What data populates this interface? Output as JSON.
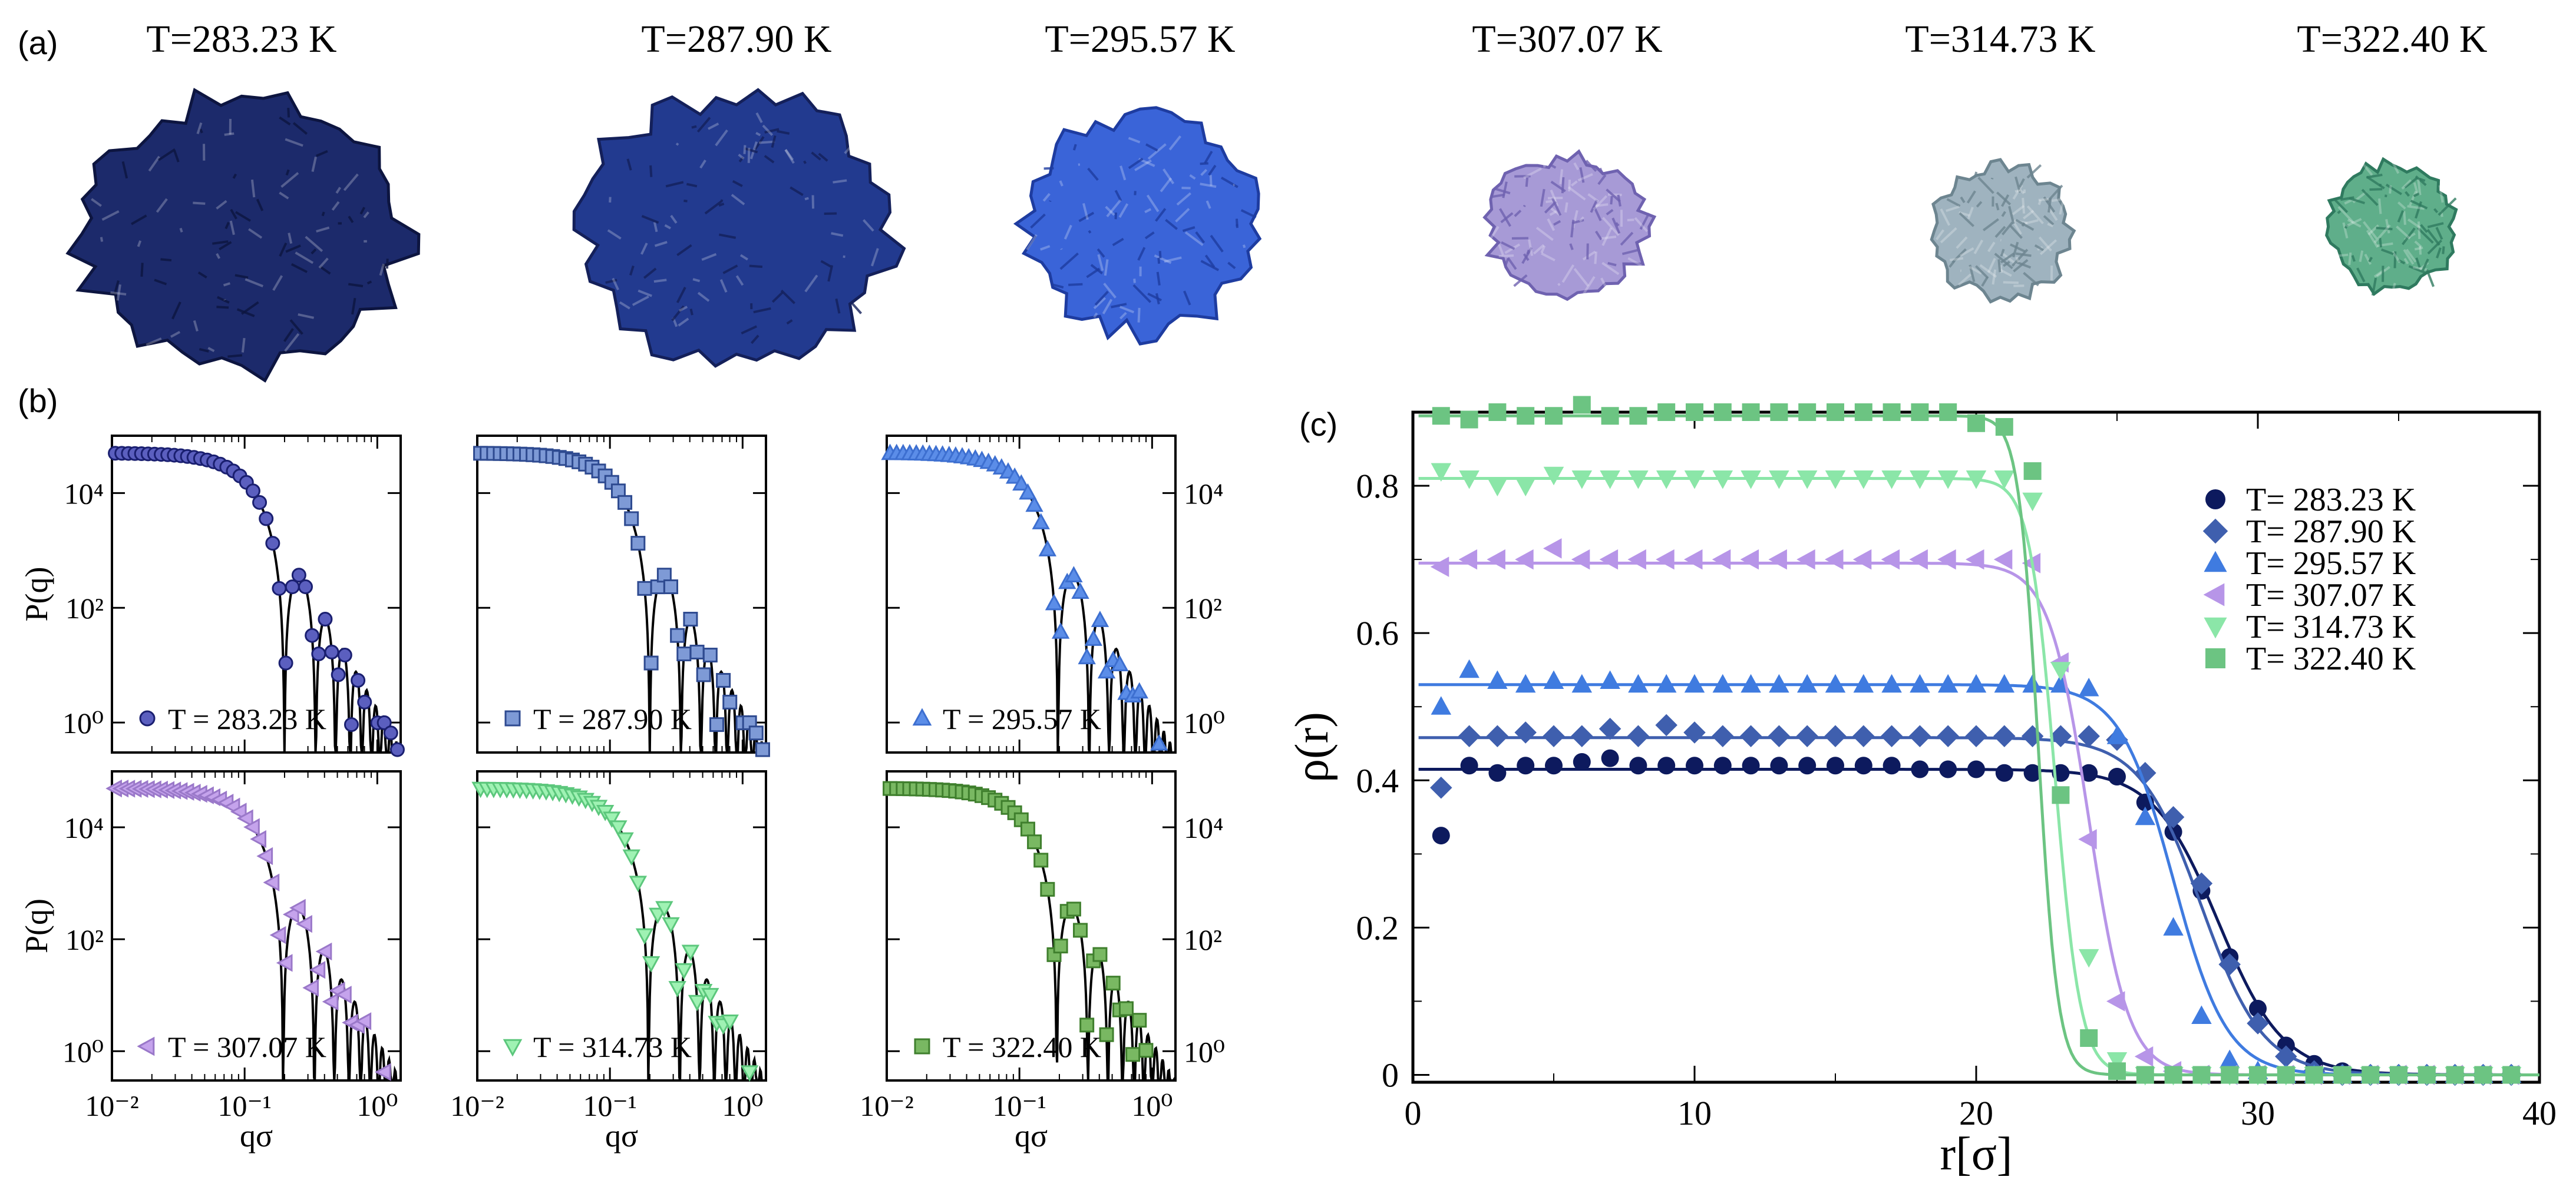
{
  "panel_labels": {
    "a": "(a)",
    "b": "(b)",
    "c": "(c)"
  },
  "snapshots": [
    {
      "title": "T=283.23 K",
      "color": "#1c2a6b",
      "accent": "#0d1540"
    },
    {
      "title": "T=287.90 K",
      "color": "#223a8f",
      "accent": "#14205a"
    },
    {
      "title": "T=295.57 K",
      "color": "#3a64d8",
      "accent": "#1e3ca0"
    },
    {
      "title": "T=307.07 K",
      "color": "#a79ad6",
      "accent": "#6f62b0"
    },
    {
      "title": "T=314.73 K",
      "color": "#9fb3bf",
      "accent": "#6d8590"
    },
    {
      "title": "T=322.40 K",
      "color": "#5fae8a",
      "accent": "#2f7a5f"
    }
  ],
  "chart_data": [
    {
      "id": "b",
      "type": "line",
      "title": "",
      "xlabel": "qσ",
      "ylabel": "P(q)",
      "xscale": "log",
      "yscale": "log",
      "xlim": [
        0.01,
        1.5
      ],
      "ylim": [
        0.3,
        100000
      ],
      "x_ticks": [
        "10⁻²",
        "10⁻¹",
        "10⁰"
      ],
      "y_ticks": [
        "10⁰",
        "10²",
        "10⁴"
      ],
      "subplots": [
        {
          "legend": "T = 283.23 K",
          "marker": "circle",
          "color": "#5b5fbf",
          "edge": "#1a1f70",
          "R": 22.5
        },
        {
          "legend": "T = 287.90  K",
          "marker": "square",
          "color": "#7e9ad6",
          "edge": "#2e4a90",
          "R": 22.5
        },
        {
          "legend": "T = 295.57 K",
          "marker": "triangle",
          "color": "#5b8de8",
          "edge": "#3d6fd0",
          "R": 23.0
        },
        {
          "legend": "T = 307.07 K",
          "marker": "left",
          "color": "#c5a3ec",
          "edge": "#9a78c9",
          "R": 23.0
        },
        {
          "legend": "T = 314.73 K",
          "marker": "down",
          "color": "#9ff2b3",
          "edge": "#5cc77c",
          "R": 23.0
        },
        {
          "legend": "T = 322.40 K",
          "marker": "square",
          "color": "#79b862",
          "edge": "#3f7f2d",
          "R": 23.5
        }
      ]
    },
    {
      "id": "c",
      "type": "scatter",
      "title": "",
      "xlabel": "r[σ]",
      "ylabel": "ρ(r)",
      "xlim": [
        0,
        40
      ],
      "ylim": [
        -0.01,
        0.9
      ],
      "x_ticks": [
        0,
        10,
        20,
        30,
        40
      ],
      "y_ticks": [
        0,
        0.2,
        0.4,
        0.6,
        0.8
      ],
      "legend_position": "top-right",
      "series": [
        {
          "name": "T= 283.23 K",
          "marker": "circle",
          "color": "#0d1a5e",
          "plateau": 0.415,
          "R": 28.6,
          "w": 1.15,
          "r": [
            1,
            2,
            3,
            4,
            5,
            6,
            7,
            8,
            9,
            10,
            11,
            12,
            13,
            14,
            15,
            16,
            17,
            18,
            19,
            20,
            21,
            22,
            23,
            24,
            25,
            26,
            27,
            28,
            29,
            30,
            31,
            32,
            33,
            34,
            35,
            36,
            37,
            38,
            39
          ],
          "rho": [
            0.325,
            0.42,
            0.41,
            0.42,
            0.42,
            0.425,
            0.43,
            0.42,
            0.42,
            0.42,
            0.42,
            0.42,
            0.42,
            0.42,
            0.42,
            0.42,
            0.42,
            0.415,
            0.415,
            0.415,
            0.41,
            0.41,
            0.41,
            0.41,
            0.405,
            0.37,
            0.33,
            0.25,
            0.16,
            0.09,
            0.04,
            0.015,
            0.005,
            0.0,
            0.0,
            0.0,
            0.0,
            0.0,
            0.0
          ]
        },
        {
          "name": "T= 287.90 K",
          "marker": "diamond",
          "color": "#3f5fae",
          "plateau": 0.458,
          "R": 28.0,
          "w": 1.1,
          "r": [
            1,
            2,
            3,
            4,
            5,
            6,
            7,
            8,
            9,
            10,
            11,
            12,
            13,
            14,
            15,
            16,
            17,
            18,
            19,
            20,
            21,
            22,
            23,
            24,
            25,
            26,
            27,
            28,
            29,
            30,
            31,
            32,
            33,
            34,
            35,
            36,
            37,
            38,
            39
          ],
          "rho": [
            0.39,
            0.46,
            0.46,
            0.465,
            0.46,
            0.46,
            0.47,
            0.46,
            0.475,
            0.465,
            0.46,
            0.46,
            0.46,
            0.46,
            0.46,
            0.46,
            0.46,
            0.46,
            0.46,
            0.46,
            0.46,
            0.46,
            0.46,
            0.46,
            0.455,
            0.41,
            0.35,
            0.26,
            0.15,
            0.07,
            0.025,
            0.005,
            0.0,
            0.0,
            0.0,
            0.0,
            0.0,
            0.0,
            0.0
          ]
        },
        {
          "name": "T= 295.57 K",
          "marker": "triangle",
          "color": "#3f7be0",
          "plateau": 0.53,
          "R": 27.0,
          "w": 0.95,
          "r": [
            1,
            2,
            3,
            4,
            5,
            6,
            7,
            8,
            9,
            10,
            11,
            12,
            13,
            14,
            15,
            16,
            17,
            18,
            19,
            20,
            21,
            22,
            23,
            24,
            25,
            26,
            27,
            28,
            29,
            30,
            31,
            32,
            33,
            34,
            35,
            36,
            37,
            38,
            39
          ],
          "rho": [
            0.5,
            0.55,
            0.535,
            0.53,
            0.535,
            0.53,
            0.535,
            0.53,
            0.53,
            0.53,
            0.53,
            0.53,
            0.53,
            0.53,
            0.53,
            0.53,
            0.53,
            0.53,
            0.53,
            0.53,
            0.53,
            0.53,
            0.53,
            0.525,
            0.46,
            0.35,
            0.2,
            0.08,
            0.02,
            0.005,
            0.0,
            0.0,
            0.0,
            0.0,
            0.0,
            0.0,
            0.0,
            0.0,
            0.0
          ]
        },
        {
          "name": "T= 307.07 K",
          "marker": "left",
          "color": "#b795e8",
          "plateau": 0.695,
          "R": 24.0,
          "w": 0.7,
          "r": [
            1,
            2,
            3,
            4,
            5,
            6,
            7,
            8,
            9,
            10,
            11,
            12,
            13,
            14,
            15,
            16,
            17,
            18,
            19,
            20,
            21,
            22,
            23,
            24,
            25,
            26,
            27,
            28,
            29,
            30,
            31,
            32,
            33,
            34,
            35,
            36,
            37,
            38,
            39
          ],
          "rho": [
            0.69,
            0.7,
            0.7,
            0.7,
            0.715,
            0.7,
            0.7,
            0.7,
            0.7,
            0.7,
            0.7,
            0.7,
            0.7,
            0.7,
            0.7,
            0.7,
            0.7,
            0.7,
            0.7,
            0.7,
            0.7,
            0.695,
            0.56,
            0.32,
            0.1,
            0.025,
            0.005,
            0.0,
            0.0,
            0.0,
            0.0,
            0.0,
            0.0,
            0.0,
            0.0,
            0.0,
            0.0,
            0.0,
            0.0
          ]
        },
        {
          "name": "T= 314.73 K",
          "marker": "down",
          "color": "#8be6a8",
          "plateau": 0.81,
          "R": 22.8,
          "w": 0.45,
          "r": [
            1,
            2,
            3,
            4,
            5,
            6,
            7,
            8,
            9,
            10,
            11,
            12,
            13,
            14,
            15,
            16,
            17,
            18,
            19,
            20,
            21,
            22,
            23,
            24,
            25,
            26,
            27,
            28,
            29,
            30,
            31,
            32,
            33,
            34,
            35,
            36,
            37,
            38,
            39
          ],
          "rho": [
            0.82,
            0.81,
            0.8,
            0.8,
            0.815,
            0.81,
            0.81,
            0.81,
            0.81,
            0.81,
            0.81,
            0.81,
            0.81,
            0.81,
            0.81,
            0.81,
            0.81,
            0.81,
            0.81,
            0.81,
            0.81,
            0.78,
            0.55,
            0.16,
            0.02,
            0.0,
            0.0,
            0.0,
            0.0,
            0.0,
            0.0,
            0.0,
            0.0,
            0.0,
            0.0,
            0.0,
            0.0,
            0.0,
            0.0
          ]
        },
        {
          "name": "T= 322.40 K",
          "marker": "square",
          "color": "#6cc482",
          "plateau": 0.895,
          "R": 22.2,
          "w": 0.35,
          "r": [
            1,
            2,
            3,
            4,
            5,
            6,
            7,
            8,
            9,
            10,
            11,
            12,
            13,
            14,
            15,
            16,
            17,
            18,
            19,
            20,
            21,
            22,
            23,
            24,
            25,
            26,
            27,
            28,
            29,
            30,
            31,
            32,
            33,
            34,
            35,
            36,
            37,
            38,
            39
          ],
          "rho": [
            0.895,
            0.89,
            0.9,
            0.895,
            0.895,
            0.91,
            0.895,
            0.895,
            0.9,
            0.9,
            0.9,
            0.9,
            0.9,
            0.9,
            0.9,
            0.9,
            0.9,
            0.9,
            0.9,
            0.885,
            0.88,
            0.82,
            0.38,
            0.05,
            0.005,
            0.0,
            0.0,
            0.0,
            0.0,
            0.0,
            0.0,
            0.0,
            0.0,
            0.0,
            0.0,
            0.0,
            0.0,
            0.0,
            0.0
          ]
        }
      ]
    }
  ]
}
